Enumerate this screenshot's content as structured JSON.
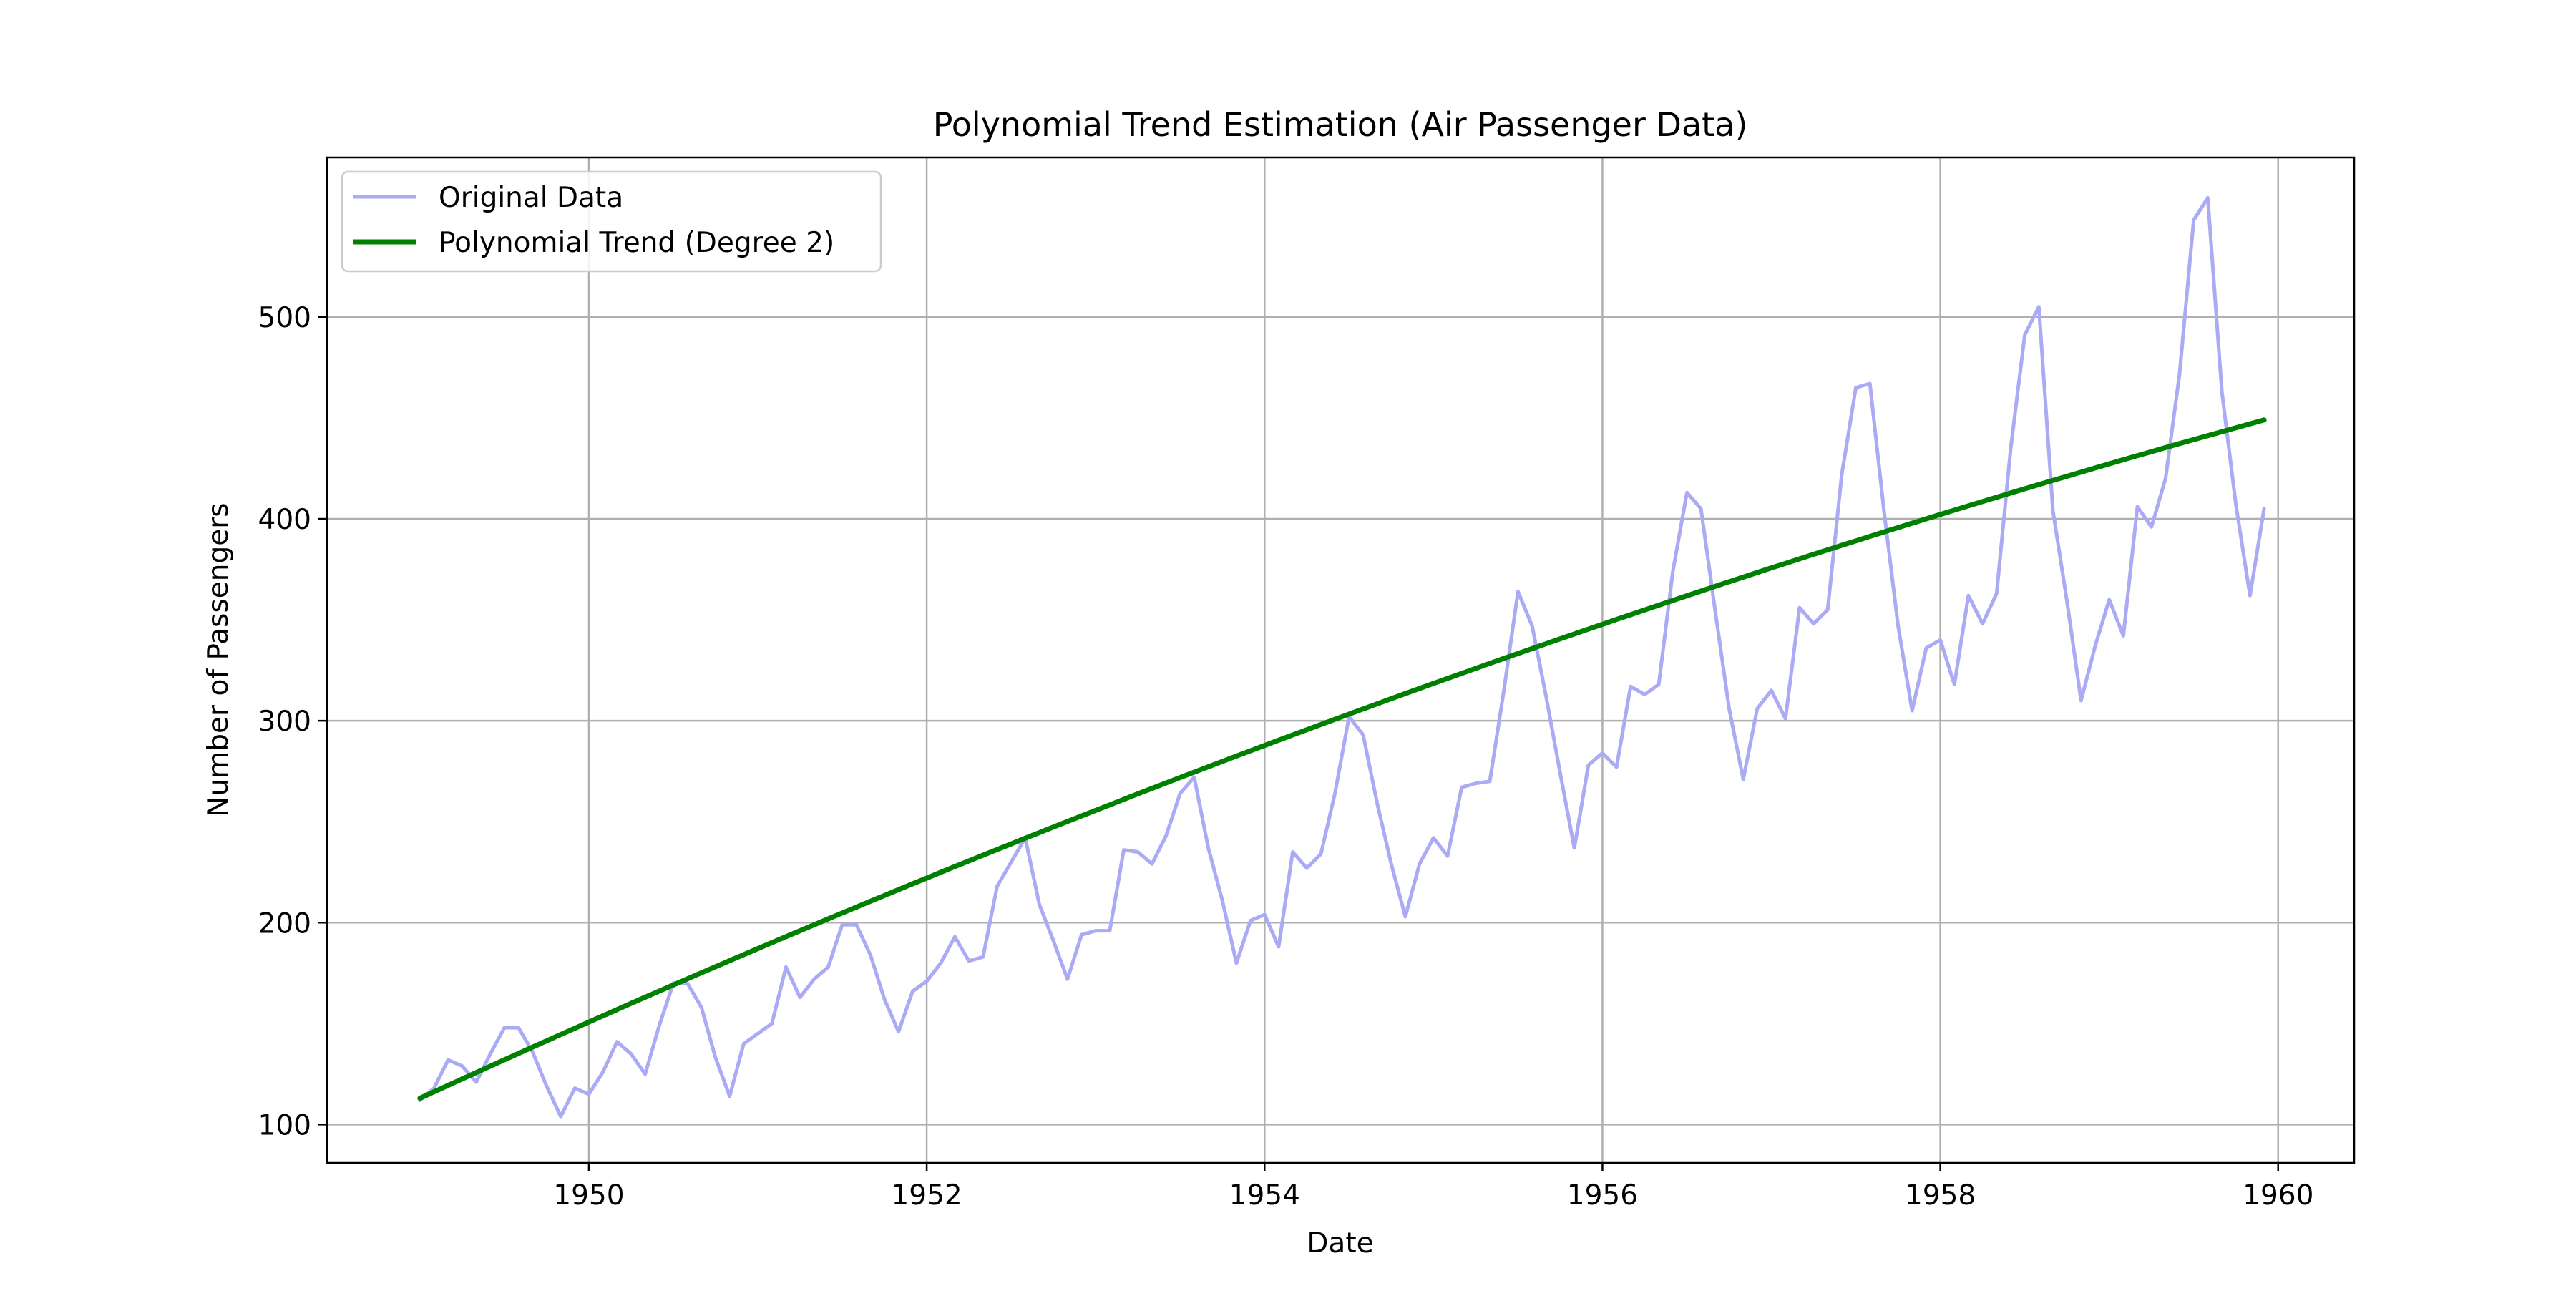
{
  "chart_data": {
    "type": "line",
    "title": "Polynomial Trend Estimation (Air Passenger Data)",
    "xlabel": "Date",
    "ylabel": "Number of Passengers",
    "x_unit": "year",
    "xlim": [
      1948.45,
      1960.45
    ],
    "ylim": [
      81,
      579
    ],
    "x_ticks": [
      1950,
      1952,
      1954,
      1956,
      1958,
      1960
    ],
    "x_tick_labels": [
      "1950",
      "1952",
      "1954",
      "1956",
      "1958",
      "1960"
    ],
    "y_ticks": [
      100,
      200,
      300,
      400,
      500
    ],
    "y_tick_labels": [
      "100",
      "200",
      "300",
      "400",
      "500"
    ],
    "grid": true,
    "legend_position": "top-left",
    "x_start": "1949-01",
    "x_end": "1959-12",
    "x_frequency": "monthly",
    "series": [
      {
        "name": "Original Data",
        "color": "#aaaaf5",
        "values": [
          112,
          118,
          132,
          129,
          121,
          135,
          148,
          148,
          136,
          119,
          104,
          118,
          115,
          126,
          141,
          135,
          125,
          149,
          170,
          170,
          158,
          133,
          114,
          140,
          145,
          150,
          178,
          163,
          172,
          178,
          199,
          199,
          184,
          162,
          146,
          166,
          171,
          180,
          193,
          181,
          183,
          218,
          230,
          242,
          209,
          191,
          172,
          194,
          196,
          196,
          236,
          235,
          229,
          243,
          264,
          272,
          237,
          211,
          180,
          201,
          204,
          188,
          235,
          227,
          234,
          264,
          302,
          293,
          259,
          229,
          203,
          229,
          242,
          233,
          267,
          269,
          270,
          315,
          364,
          347,
          312,
          274,
          237,
          278,
          284,
          277,
          317,
          313,
          318,
          374,
          413,
          405,
          355,
          306,
          271,
          306,
          315,
          301,
          356,
          348,
          355,
          422,
          465,
          467,
          404,
          347,
          305,
          336,
          340,
          318,
          362,
          348,
          363,
          435,
          491,
          505,
          404,
          359,
          310,
          337,
          360,
          342,
          406,
          396,
          420,
          472,
          548,
          559,
          463,
          407,
          362,
          405
        ]
      },
      {
        "name": "Polynomial Trend (Degree 2)",
        "color": "#008000",
        "trend_start": 113,
        "trend_mid": 302,
        "trend_end": 449
      }
    ]
  }
}
